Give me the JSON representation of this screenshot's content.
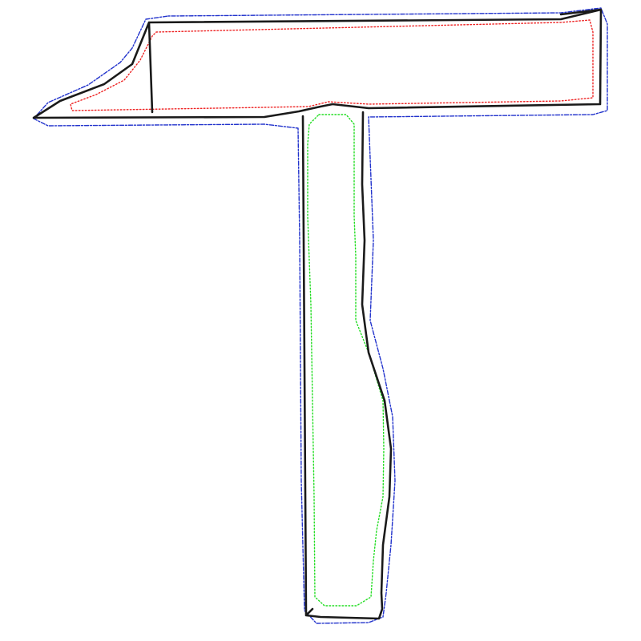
{
  "figure": {
    "background": "#ffffff",
    "colors": {
      "outline": "#1a1a1a",
      "outer_contour": "#2233cc",
      "head_inner_contour": "#ee2222",
      "handle_inner_contour": "#22dd22"
    },
    "shapes": [
      "hammer-head-outline",
      "hammer-handle-outline",
      "outer-contour",
      "head-inner-contour",
      "handle-inner-contour"
    ]
  }
}
